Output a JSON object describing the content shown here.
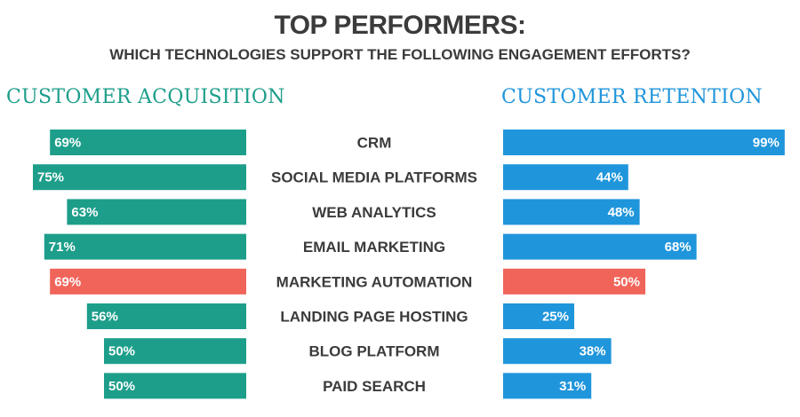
{
  "title": "TOP PERFORMERS:",
  "subtitle": "WHICH TECHNOLOGIES SUPPORT THE FOLLOWING ENGAGEMENT EFFORTS?",
  "colors": {
    "acquisition": "#1d9e8a",
    "retention": "#1f95db",
    "highlight": "#f0645a",
    "text": "#3b3b3b"
  },
  "chart_data": {
    "type": "bar",
    "orientation": "horizontal-diverging",
    "categories": [
      "CRM",
      "SOCIAL MEDIA PLATFORMS",
      "WEB ANALYTICS",
      "EMAIL MARKETING",
      "MARKETING AUTOMATION",
      "LANDING PAGE HOSTING",
      "BLOG PLATFORM",
      "PAID SEARCH"
    ],
    "highlight_category": "MARKETING AUTOMATION",
    "series": [
      {
        "name": "CUSTOMER ACQUISITION",
        "side": "left",
        "values": [
          69,
          75,
          63,
          71,
          69,
          56,
          50,
          50
        ],
        "labels": [
          "69%",
          "75%",
          "63%",
          "71%",
          "69%",
          "56%",
          "50%",
          "50%"
        ]
      },
      {
        "name": "CUSTOMER RETENTION",
        "side": "right",
        "values": [
          99,
          44,
          48,
          68,
          50,
          25,
          38,
          31
        ],
        "labels": [
          "99%",
          "44%",
          "48%",
          "68%",
          "50%",
          "25%",
          "38%",
          "31%"
        ]
      }
    ],
    "unit": "%",
    "xlim": [
      0,
      100
    ]
  }
}
